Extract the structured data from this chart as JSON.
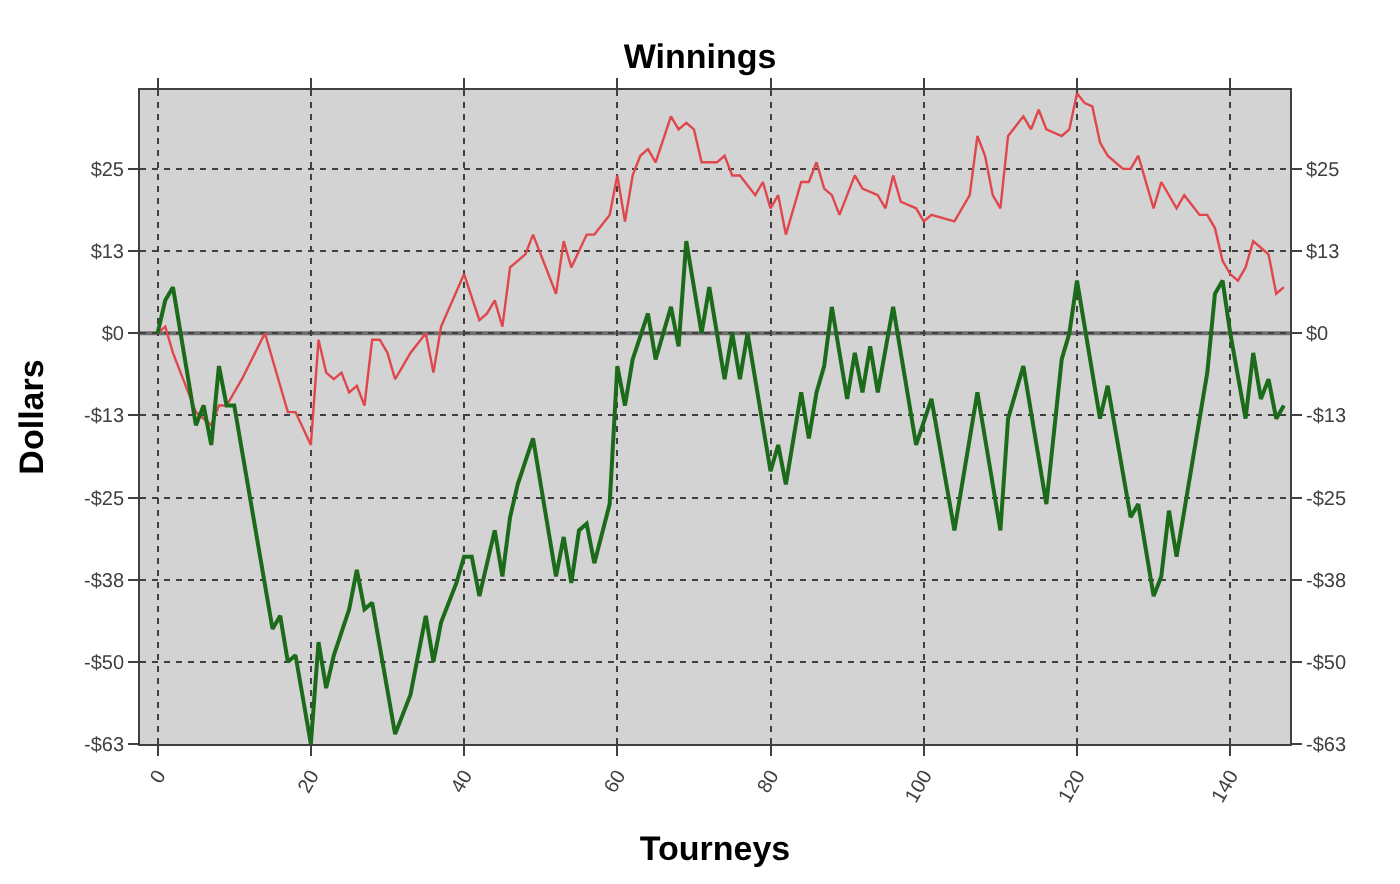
{
  "chart_data": {
    "type": "line",
    "title": "Winnings",
    "xlabel": "Tourneys",
    "ylabel": "Dollars",
    "xlim": [
      -2.3,
      147.8
    ],
    "xticks": [
      0,
      20,
      40,
      60,
      80,
      100,
      120,
      140
    ],
    "ylim": [
      -62.5,
      37
    ],
    "yticks": [
      {
        "value": -62.5,
        "label": "-$63"
      },
      {
        "value": -50,
        "label": "-$50"
      },
      {
        "value": -37.5,
        "label": "-$38"
      },
      {
        "value": -25,
        "label": "-$25"
      },
      {
        "value": -12.5,
        "label": "-$13"
      },
      {
        "value": 0,
        "label": "$0"
      },
      {
        "value": 12.5,
        "label": "$13"
      },
      {
        "value": 25,
        "label": "$25"
      }
    ],
    "y2lim": [
      -62.5,
      37
    ],
    "y2ticks": [
      {
        "value": -62.5,
        "label": "-$63"
      },
      {
        "value": -50,
        "label": "-$50"
      },
      {
        "value": -37.5,
        "label": "-$38"
      },
      {
        "value": -25,
        "label": "-$25"
      },
      {
        "value": -12.5,
        "label": "-$13"
      },
      {
        "value": 0,
        "label": "$0"
      },
      {
        "value": 12.5,
        "label": "$13"
      },
      {
        "value": 25,
        "label": "$25"
      }
    ],
    "grid": true,
    "marker": "none",
    "line_style": "solid",
    "ref_lines": [
      {
        "axis": "y",
        "value": 0,
        "label": null,
        "color": "#707070"
      }
    ],
    "series": [
      {
        "color": "#e0474c",
        "x": [
          0,
          1,
          2,
          5,
          7,
          8,
          9,
          11,
          14,
          17,
          18,
          20,
          21,
          22,
          23,
          24,
          25,
          26,
          27,
          28,
          29,
          30,
          31,
          32,
          33,
          35,
          36,
          37,
          40,
          42,
          43,
          44,
          45,
          46,
          48,
          49,
          51,
          52,
          53,
          54,
          56,
          57,
          59,
          60,
          61,
          62,
          63,
          64,
          65,
          67,
          68,
          69,
          70,
          71,
          72,
          73,
          74,
          75,
          76,
          78,
          79,
          80,
          81,
          82,
          84,
          85,
          86,
          87,
          88,
          89,
          91,
          92,
          94,
          95,
          96,
          97,
          99,
          100,
          101,
          104,
          106,
          107,
          108,
          109,
          110,
          111,
          113,
          114,
          115,
          116,
          118,
          119,
          120,
          121,
          122,
          123,
          124,
          126,
          127,
          128,
          130,
          131,
          133,
          134,
          136,
          137,
          138,
          139,
          140,
          141,
          142,
          143,
          144,
          145,
          146,
          147
        ],
        "values": [
          0,
          1,
          -3,
          -12,
          -14,
          -11,
          -11,
          -7,
          0,
          -12,
          -12,
          -17,
          -1,
          -6,
          -7,
          -6,
          -9,
          -8,
          -11,
          -1,
          -1,
          -3,
          -7,
          -5,
          -3,
          0,
          -6,
          1,
          9,
          2,
          3,
          5,
          1,
          10,
          12,
          15,
          9,
          6,
          14,
          10,
          15,
          15,
          18,
          24,
          17,
          24,
          27,
          28,
          26,
          33,
          31,
          32,
          31,
          26,
          26,
          26,
          27,
          24,
          24,
          21,
          23,
          19,
          21,
          15,
          23,
          23,
          26,
          22,
          21,
          18,
          24,
          22,
          21,
          19,
          24,
          20,
          19,
          17,
          18,
          17,
          21,
          30,
          27,
          21,
          19,
          30,
          33,
          31,
          34,
          31,
          30,
          31,
          36.5,
          35,
          34.5,
          29,
          27,
          25,
          25,
          27,
          19,
          23,
          19,
          21,
          18,
          18,
          16,
          11,
          9,
          8,
          10,
          14,
          13,
          12,
          6,
          7
        ]
      },
      {
        "color": "#1b6b1b",
        "x": [
          0,
          1,
          2,
          5,
          6,
          7,
          8,
          9,
          10,
          15,
          16,
          17,
          18,
          20,
          21,
          22,
          23,
          25,
          26,
          27,
          28,
          31,
          33,
          35,
          36,
          37,
          39,
          40,
          41,
          42,
          44,
          45,
          46,
          47,
          49,
          52,
          53,
          54,
          55,
          56,
          57,
          59,
          60,
          61,
          62,
          64,
          65,
          67,
          68,
          69,
          71,
          72,
          74,
          75,
          76,
          77,
          80,
          81,
          82,
          84,
          85,
          86,
          87,
          88,
          90,
          91,
          92,
          93,
          94,
          96,
          99,
          101,
          104,
          107,
          110,
          111,
          113,
          116,
          118,
          119,
          120,
          123,
          124,
          127,
          128,
          130,
          131,
          132,
          133,
          137,
          138,
          139,
          140,
          142,
          143,
          144,
          145,
          146,
          147
        ],
        "values": [
          0,
          5,
          7,
          -14,
          -11,
          -17,
          -5,
          -11,
          -11,
          -45,
          -43,
          -50,
          -49,
          -62.5,
          -47,
          -54,
          -49,
          -42,
          -36,
          -42,
          -41,
          -61,
          -55,
          -43,
          -50,
          -44,
          -38,
          -34,
          -34,
          -40,
          -30,
          -37,
          -28,
          -23,
          -16,
          -37,
          -31,
          -38,
          -30,
          -29,
          -35,
          -26,
          -5,
          -11,
          -4,
          3,
          -4,
          4,
          -2,
          14,
          0,
          7,
          -7,
          0,
          -7,
          0,
          -21,
          -17,
          -23,
          -9,
          -16,
          -9,
          -5,
          4,
          -10,
          -3,
          -9,
          -2,
          -9,
          4,
          -17,
          -10,
          -30,
          -9,
          -30,
          -13,
          -5,
          -26,
          -4,
          0,
          8,
          -13,
          -8,
          -28,
          -26,
          -40,
          -37,
          -27,
          -34,
          -6,
          6,
          8,
          0,
          -13,
          -3,
          -10,
          -7,
          -13,
          -11
        ]
      }
    ]
  }
}
